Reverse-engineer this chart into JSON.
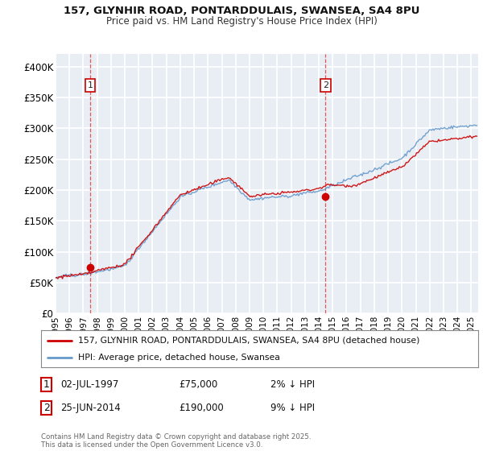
{
  "title_line1": "157, GLYNHIR ROAD, PONTARDDULAIS, SWANSEA, SA4 8PU",
  "title_line2": "Price paid vs. HM Land Registry's House Price Index (HPI)",
  "ylim": [
    0,
    420000
  ],
  "yticks": [
    0,
    50000,
    100000,
    150000,
    200000,
    250000,
    300000,
    350000,
    400000
  ],
  "ytick_labels": [
    "£0",
    "£50K",
    "£100K",
    "£150K",
    "£200K",
    "£250K",
    "£300K",
    "£350K",
    "£400K"
  ],
  "xlim_start": 1995.0,
  "xlim_end": 2025.5,
  "xticks": [
    1995,
    1996,
    1997,
    1998,
    1999,
    2000,
    2001,
    2002,
    2003,
    2004,
    2005,
    2006,
    2007,
    2008,
    2009,
    2010,
    2011,
    2012,
    2013,
    2014,
    2015,
    2016,
    2017,
    2018,
    2019,
    2020,
    2021,
    2022,
    2023,
    2024,
    2025
  ],
  "purchase1_date": 1997.5,
  "purchase1_price": 75000,
  "purchase1_label": "1",
  "purchase2_date": 2014.49,
  "purchase2_price": 190000,
  "purchase2_label": "2",
  "legend_line1": "157, GLYNHIR ROAD, PONTARDDULAIS, SWANSEA, SA4 8PU (detached house)",
  "legend_line2": "HPI: Average price, detached house, Swansea",
  "annotation1": [
    "1",
    "02-JUL-1997",
    "£75,000",
    "2% ↓ HPI"
  ],
  "annotation2": [
    "2",
    "25-JUN-2014",
    "£190,000",
    "9% ↓ HPI"
  ],
  "footer": "Contains HM Land Registry data © Crown copyright and database right 2025.\nThis data is licensed under the Open Government Licence v3.0.",
  "line_color_red": "#cc0000",
  "line_color_blue": "#6699cc",
  "background_color": "#e8eef4",
  "grid_color": "#ffffff"
}
